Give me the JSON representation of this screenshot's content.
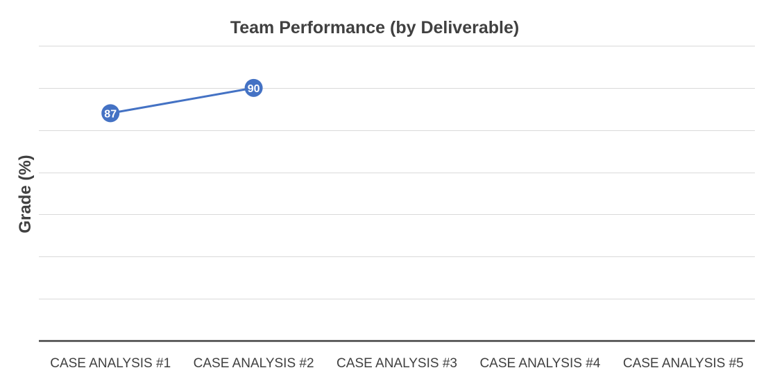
{
  "chart_data": {
    "type": "line",
    "title": "Team Performance (by Deliverable)",
    "xlabel": "",
    "ylabel": "Grade (%)",
    "categories": [
      "CASE ANALYSIS #1",
      "CASE ANALYSIS #2",
      "CASE ANALYSIS #3",
      "CASE ANALYSIS #4",
      "CASE ANALYSIS #5"
    ],
    "ylim": [
      60,
      95
    ],
    "y_gridlines": [
      65,
      70,
      75,
      80,
      85,
      90,
      95
    ],
    "grid": true,
    "legend": "none",
    "series": [
      {
        "values": [
          87,
          90,
          null,
          null,
          null
        ],
        "color": "#4472c4",
        "data_labels": true
      }
    ]
  }
}
